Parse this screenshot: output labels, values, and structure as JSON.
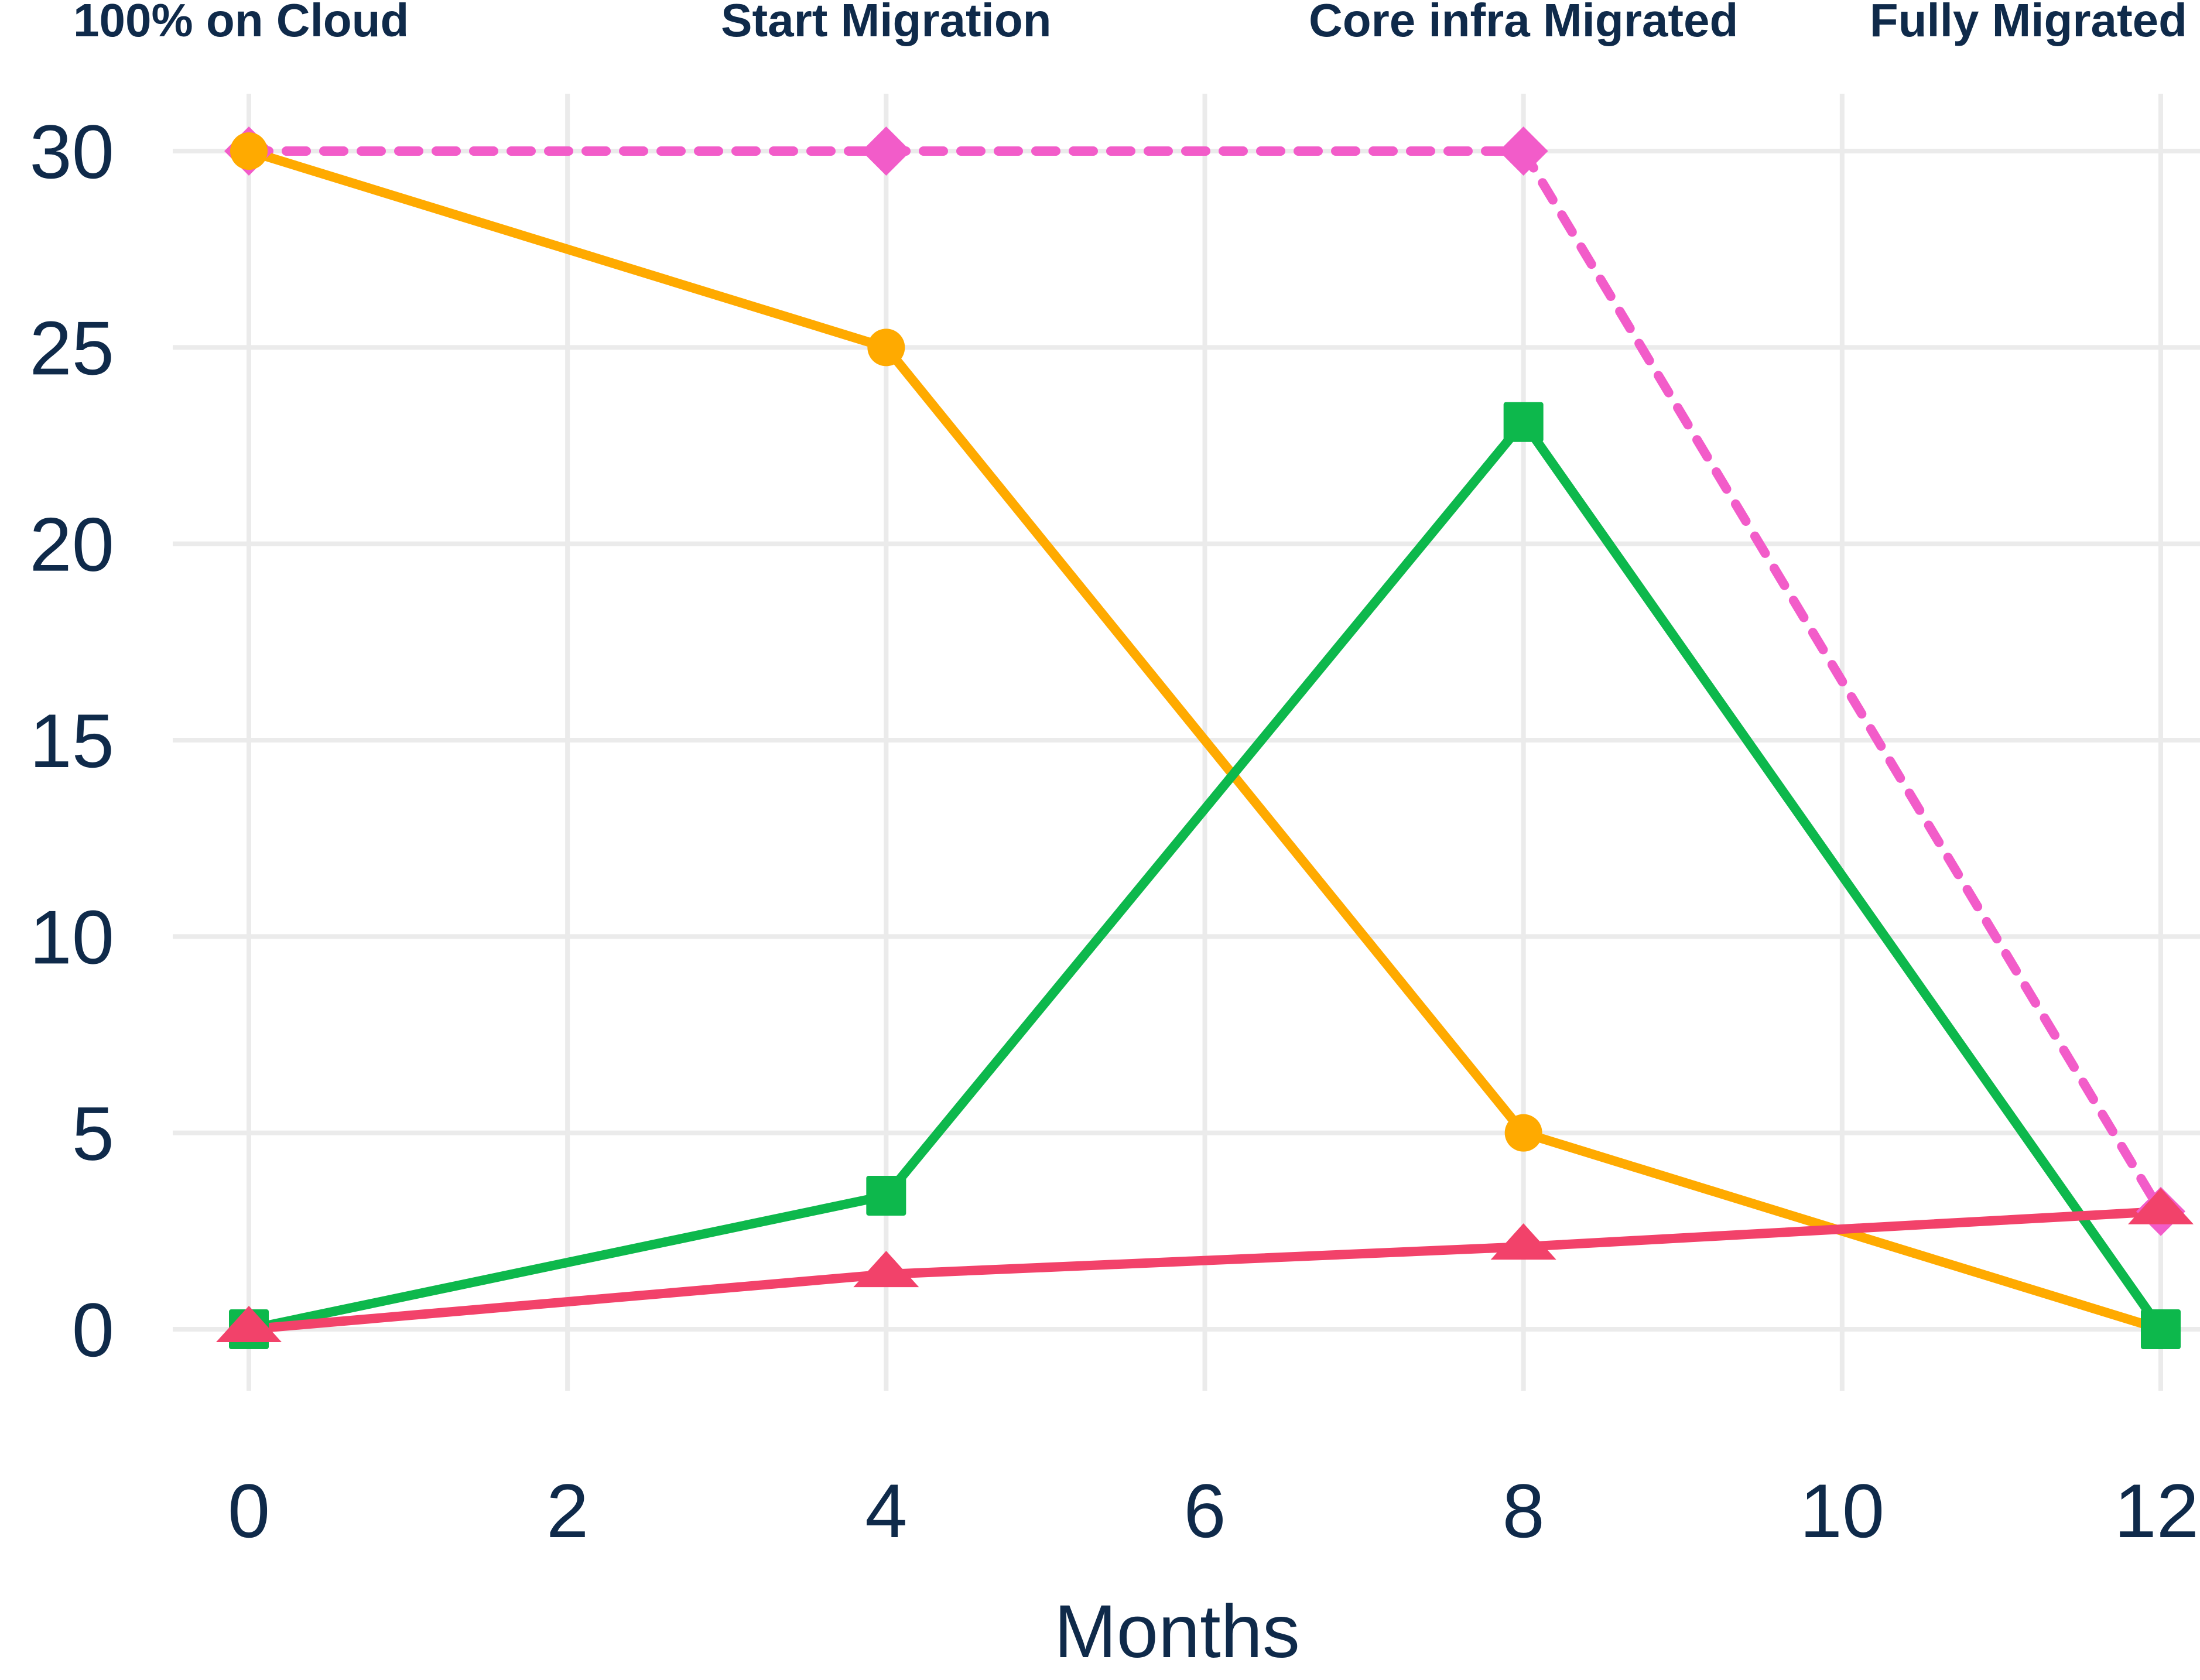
{
  "chart_data": {
    "type": "line",
    "xlabel": "Months",
    "ylabel": "",
    "xlim": [
      0,
      12
    ],
    "ylim": [
      0,
      30
    ],
    "x_ticks": [
      0,
      2,
      4,
      6,
      8,
      10,
      12
    ],
    "y_ticks": [
      0,
      5,
      10,
      15,
      20,
      25,
      30
    ],
    "x_tick_labels": [
      "0",
      "2",
      "4",
      "6",
      "8",
      "10",
      "12"
    ],
    "y_tick_labels": [
      "0",
      "5",
      "10",
      "15",
      "20",
      "25",
      "30"
    ],
    "grid": true,
    "legend": "none",
    "phase_labels": [
      {
        "x": 0,
        "text": "100% on Cloud"
      },
      {
        "x": 4,
        "text": "Start Migration"
      },
      {
        "x": 8,
        "text": "Core infra Migrated"
      },
      {
        "x": 12,
        "text": "Fully Migrated"
      }
    ],
    "series": [
      {
        "id": "pink-dotted",
        "color": "#f25cc9",
        "marker": "diamond",
        "dashed": true,
        "x": [
          0,
          4,
          8,
          12
        ],
        "y": [
          30,
          30,
          30,
          3
        ]
      },
      {
        "id": "orange",
        "color": "#ffaa00",
        "marker": "circle",
        "dashed": false,
        "x": [
          0,
          4,
          8,
          12
        ],
        "y": [
          30,
          25,
          5,
          0
        ]
      },
      {
        "id": "green",
        "color": "#0db84c",
        "marker": "square",
        "dashed": false,
        "x": [
          0,
          4,
          8,
          12
        ],
        "y": [
          0,
          3.4,
          23.1,
          0
        ]
      },
      {
        "id": "red",
        "color": "#f2426a",
        "marker": "triangle",
        "dashed": false,
        "x": [
          0,
          4,
          8,
          12
        ],
        "y": [
          0,
          1.4,
          2.1,
          3
        ]
      }
    ]
  }
}
